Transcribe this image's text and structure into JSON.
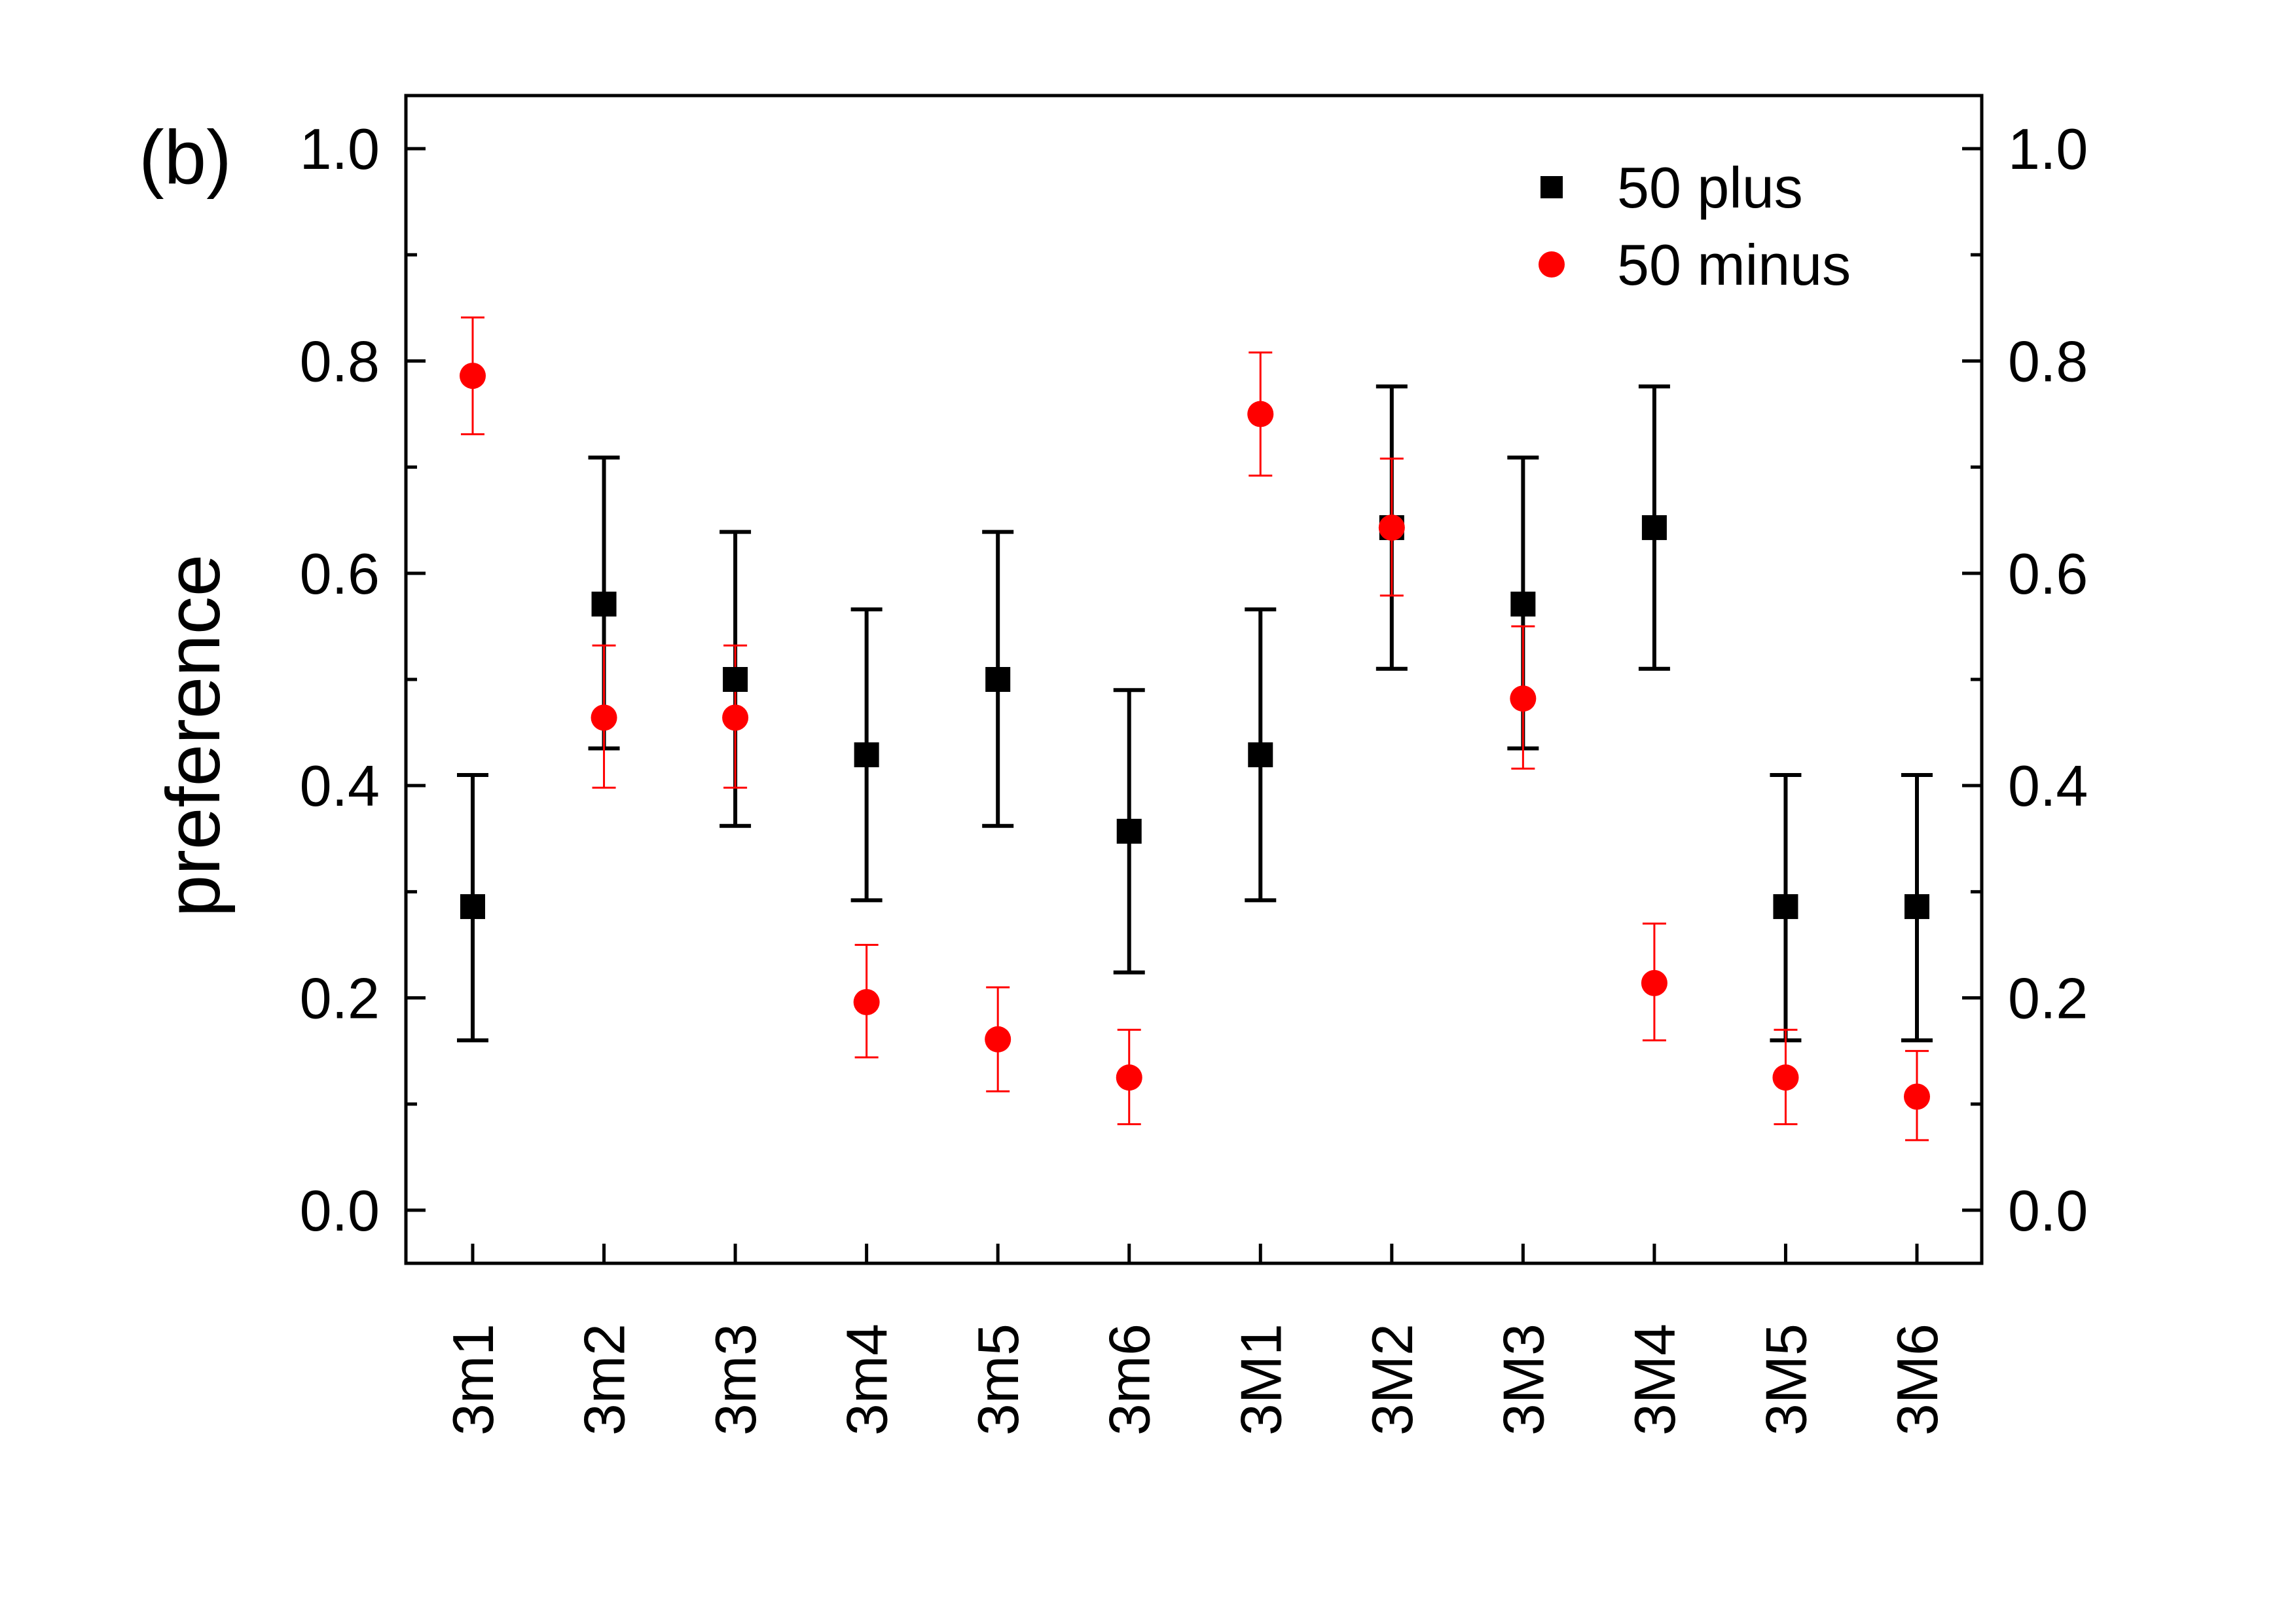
{
  "chart_data": {
    "type": "scatter",
    "panel_label": "(b)",
    "title": "",
    "xlabel": "",
    "ylabel": "preference",
    "categories": [
      "3m1",
      "3m2",
      "3m3",
      "3m4",
      "3m5",
      "3m6",
      "3M1",
      "3M2",
      "3M3",
      "3M4",
      "3M5",
      "3M6"
    ],
    "ylim": [
      -0.05,
      1.05
    ],
    "yticks": [
      "0.0",
      "0.2",
      "0.4",
      "0.6",
      "0.8",
      "1.0"
    ],
    "yticks_right": [
      "0.0",
      "0.2",
      "0.4",
      "0.6",
      "0.8",
      "1.0"
    ],
    "legend_position": "top-right",
    "series": [
      {
        "name": "50 plus",
        "marker": "square",
        "color": "#000000",
        "values": [
          0.286,
          0.571,
          0.5,
          0.429,
          0.5,
          0.357,
          0.429,
          0.643,
          0.571,
          0.643,
          0.286,
          0.286
        ],
        "err_low": [
          0.16,
          0.435,
          0.362,
          0.292,
          0.362,
          0.224,
          0.292,
          0.51,
          0.435,
          0.51,
          0.16,
          0.16
        ],
        "err_high": [
          0.41,
          0.709,
          0.639,
          0.566,
          0.639,
          0.49,
          0.566,
          0.776,
          0.709,
          0.776,
          0.41,
          0.41
        ]
      },
      {
        "name": "50 minus",
        "marker": "circle",
        "color": "#ff0000",
        "values": [
          0.786,
          0.464,
          0.464,
          0.196,
          0.161,
          0.125,
          0.75,
          0.643,
          0.482,
          0.214,
          0.125,
          0.107
        ],
        "err_low": [
          0.731,
          0.398,
          0.398,
          0.144,
          0.112,
          0.081,
          0.692,
          0.579,
          0.416,
          0.16,
          0.081,
          0.066
        ],
        "err_high": [
          0.841,
          0.532,
          0.532,
          0.25,
          0.21,
          0.17,
          0.808,
          0.708,
          0.55,
          0.27,
          0.17,
          0.15
        ]
      }
    ]
  }
}
